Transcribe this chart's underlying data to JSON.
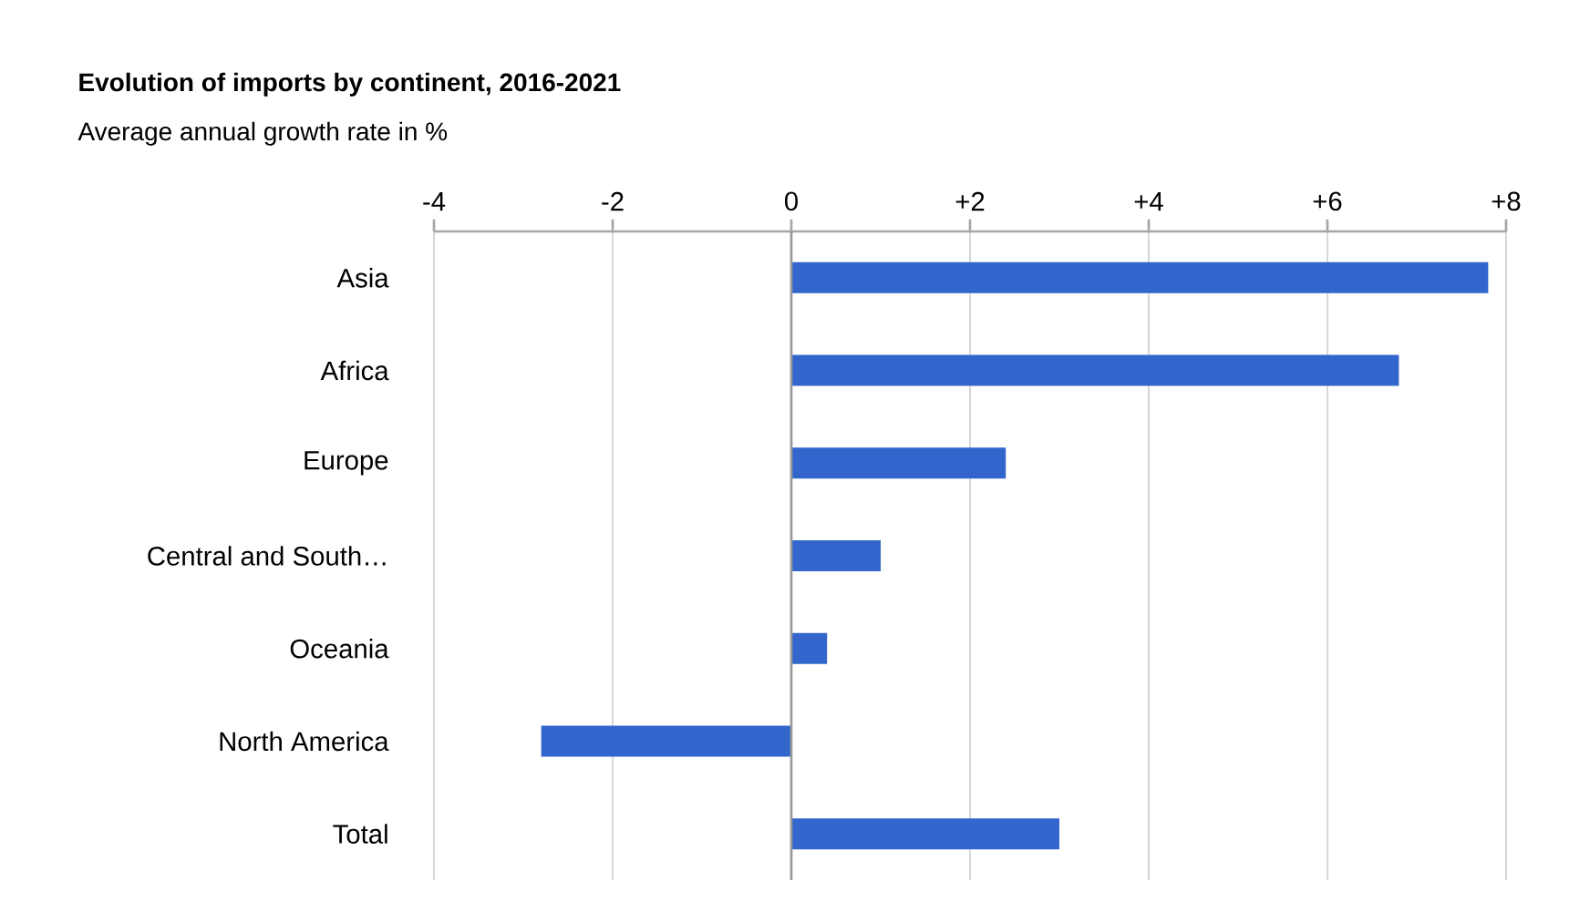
{
  "chart_data": {
    "type": "bar",
    "orientation": "horizontal",
    "title": "Evolution of imports by continent, 2016-2021",
    "subtitle": "Average annual growth rate in %",
    "categories": [
      "Asia",
      "Africa",
      "Europe",
      "Central and South…",
      "Oceania",
      "North America",
      "Total"
    ],
    "values": [
      7.8,
      6.8,
      2.4,
      1.0,
      0.4,
      -2.8,
      3.0
    ],
    "color": "#3366cc",
    "xlim": [
      -4,
      8
    ],
    "xticks": [
      -4,
      -2,
      0,
      {
        "value": 2,
        "label": "+2"
      },
      {
        "value": 4,
        "label": "+4"
      },
      {
        "value": 6,
        "label": "+6"
      },
      {
        "value": 8,
        "label": "+8"
      }
    ],
    "grid": "x"
  }
}
